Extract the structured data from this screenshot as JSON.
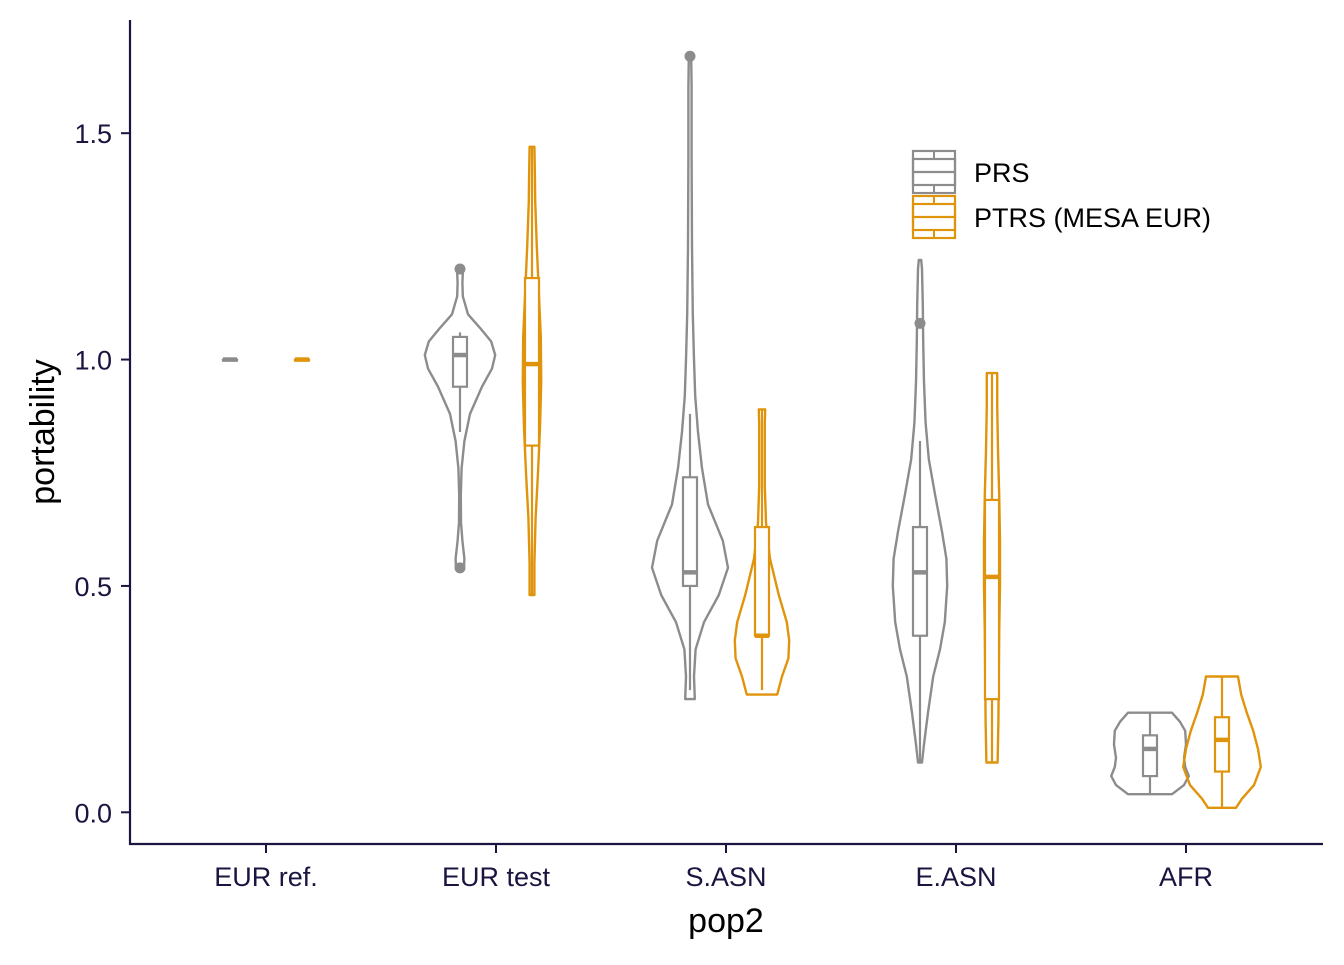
{
  "chart_data": {
    "type": "violin",
    "xlabel": "pop2",
    "ylabel": "portability",
    "ylim": [
      -0.07,
      1.75
    ],
    "yticks": [
      "0.0",
      "0.5",
      "1.0",
      "1.5"
    ],
    "ytick_values": [
      0.0,
      0.5,
      1.0,
      1.5
    ],
    "categories": [
      "EUR ref.",
      "EUR test",
      "S.ASN",
      "E.ASN",
      "AFR"
    ],
    "legend": {
      "position": "top-right",
      "entries": [
        "PRS",
        "PTRS (MESA EUR)"
      ]
    },
    "grid": false,
    "colors": {
      "PRS": "#8c8c8c",
      "PTRS (MESA EUR)": "#e0940b",
      "axis": "#1a1540"
    },
    "series": [
      {
        "name": "PRS",
        "stats": [
          {
            "category": "EUR ref.",
            "min": 1.0,
            "q1": 1.0,
            "median": 1.0,
            "q3": 1.0,
            "max": 1.0,
            "outliers": []
          },
          {
            "category": "EUR test",
            "min": 0.84,
            "q1": 0.94,
            "median": 1.01,
            "q3": 1.05,
            "max": 1.06,
            "outliers": [
              0.54,
              1.2
            ]
          },
          {
            "category": "S.ASN",
            "min": 0.27,
            "q1": 0.5,
            "median": 0.53,
            "q3": 0.74,
            "max": 0.88,
            "outliers": [
              1.67
            ]
          },
          {
            "category": "E.ASN",
            "min": 0.11,
            "q1": 0.39,
            "median": 0.53,
            "q3": 0.63,
            "max": 0.82,
            "outliers": [
              1.08
            ]
          },
          {
            "category": "AFR",
            "min": 0.04,
            "q1": 0.08,
            "median": 0.14,
            "q3": 0.17,
            "max": 0.22,
            "outliers": []
          }
        ],
        "violins": [
          {
            "category": "EUR ref.",
            "range": [
              0.999,
              1.001
            ],
            "density": [
              [
                0.999,
                0.1
              ],
              [
                1.0,
                0.12
              ],
              [
                1.001,
                0.1
              ]
            ]
          },
          {
            "category": "EUR test",
            "range": [
              0.54,
              1.2
            ],
            "density": [
              [
                0.54,
                0.1
              ],
              [
                0.56,
                0.11
              ],
              [
                0.6,
                0.06
              ],
              [
                0.64,
                0.025
              ],
              [
                0.7,
                0.02
              ],
              [
                0.76,
                0.04
              ],
              [
                0.82,
                0.11
              ],
              [
                0.88,
                0.25
              ],
              [
                0.94,
                0.55
              ],
              [
                0.98,
                0.8
              ],
              [
                1.01,
                0.88
              ],
              [
                1.04,
                0.78
              ],
              [
                1.07,
                0.5
              ],
              [
                1.1,
                0.2
              ],
              [
                1.14,
                0.07
              ],
              [
                1.17,
                0.06
              ],
              [
                1.19,
                0.07
              ],
              [
                1.2,
                0.04
              ]
            ]
          },
          {
            "category": "S.ASN",
            "range": [
              0.25,
              1.67
            ],
            "density": [
              [
                0.25,
                0.12
              ],
              [
                0.3,
                0.1
              ],
              [
                0.36,
                0.14
              ],
              [
                0.42,
                0.35
              ],
              [
                0.48,
                0.72
              ],
              [
                0.54,
                0.95
              ],
              [
                0.6,
                0.82
              ],
              [
                0.68,
                0.45
              ],
              [
                0.76,
                0.3
              ],
              [
                0.84,
                0.2
              ],
              [
                0.92,
                0.13
              ],
              [
                1.0,
                0.1
              ],
              [
                1.1,
                0.07
              ],
              [
                1.25,
                0.05
              ],
              [
                1.45,
                0.04
              ],
              [
                1.6,
                0.04
              ],
              [
                1.67,
                0.03
              ]
            ]
          },
          {
            "category": "E.ASN",
            "range": [
              0.11,
              1.22
            ],
            "density": [
              [
                0.11,
                0.05
              ],
              [
                0.15,
                0.1
              ],
              [
                0.22,
                0.2
              ],
              [
                0.3,
                0.33
              ],
              [
                0.36,
                0.5
              ],
              [
                0.42,
                0.62
              ],
              [
                0.5,
                0.68
              ],
              [
                0.56,
                0.66
              ],
              [
                0.62,
                0.55
              ],
              [
                0.7,
                0.38
              ],
              [
                0.78,
                0.22
              ],
              [
                0.86,
                0.14
              ],
              [
                0.95,
                0.1
              ],
              [
                1.04,
                0.08
              ],
              [
                1.12,
                0.07
              ],
              [
                1.2,
                0.05
              ],
              [
                1.22,
                0.03
              ]
            ]
          },
          {
            "category": "AFR",
            "range": [
              0.04,
              0.22
            ],
            "density": [
              [
                0.04,
                0.55
              ],
              [
                0.06,
                0.85
              ],
              [
                0.08,
                0.97
              ],
              [
                0.1,
                0.88
              ],
              [
                0.12,
                0.85
              ],
              [
                0.15,
                0.9
              ],
              [
                0.18,
                0.88
              ],
              [
                0.2,
                0.75
              ],
              [
                0.22,
                0.55
              ]
            ]
          }
        ]
      },
      {
        "name": "PTRS (MESA EUR)",
        "stats": [
          {
            "category": "EUR ref.",
            "min": 1.0,
            "q1": 1.0,
            "median": 1.0,
            "q3": 1.0,
            "max": 1.0,
            "outliers": []
          },
          {
            "category": "EUR test",
            "min": 0.48,
            "q1": 0.81,
            "median": 0.99,
            "q3": 1.18,
            "max": 1.47,
            "outliers": []
          },
          {
            "category": "S.ASN",
            "min": 0.27,
            "q1": 0.39,
            "median": 0.39,
            "q3": 0.63,
            "max": 0.89,
            "outliers": []
          },
          {
            "category": "E.ASN",
            "min": 0.11,
            "q1": 0.25,
            "median": 0.52,
            "q3": 0.69,
            "max": 0.97,
            "outliers": []
          },
          {
            "category": "AFR",
            "min": 0.01,
            "q1": 0.09,
            "median": 0.16,
            "q3": 0.21,
            "max": 0.3,
            "outliers": []
          }
        ],
        "violins": [
          {
            "category": "EUR ref.",
            "range": [
              0.999,
              1.001
            ],
            "density": [
              [
                0.999,
                0.1
              ],
              [
                1.0,
                0.12
              ],
              [
                1.001,
                0.1
              ]
            ]
          },
          {
            "category": "EUR test",
            "range": [
              0.48,
              1.47
            ],
            "density": [
              [
                0.48,
                0.06
              ],
              [
                0.55,
                0.06
              ],
              [
                0.65,
                0.09
              ],
              [
                0.75,
                0.15
              ],
              [
                0.85,
                0.2
              ],
              [
                0.95,
                0.23
              ],
              [
                1.05,
                0.22
              ],
              [
                1.15,
                0.17
              ],
              [
                1.25,
                0.12
              ],
              [
                1.35,
                0.08
              ],
              [
                1.42,
                0.07
              ],
              [
                1.47,
                0.06
              ]
            ]
          },
          {
            "category": "S.ASN",
            "range": [
              0.26,
              0.89
            ],
            "density": [
              [
                0.26,
                0.38
              ],
              [
                0.3,
                0.5
              ],
              [
                0.34,
                0.66
              ],
              [
                0.38,
                0.68
              ],
              [
                0.42,
                0.62
              ],
              [
                0.48,
                0.42
              ],
              [
                0.56,
                0.2
              ],
              [
                0.64,
                0.1
              ],
              [
                0.72,
                0.07
              ],
              [
                0.8,
                0.07
              ],
              [
                0.86,
                0.07
              ],
              [
                0.89,
                0.08
              ]
            ]
          },
          {
            "category": "E.ASN",
            "range": [
              0.11,
              0.97
            ],
            "density": [
              [
                0.11,
                0.14
              ],
              [
                0.2,
                0.16
              ],
              [
                0.3,
                0.17
              ],
              [
                0.4,
                0.18
              ],
              [
                0.5,
                0.2
              ],
              [
                0.6,
                0.2
              ],
              [
                0.7,
                0.18
              ],
              [
                0.8,
                0.15
              ],
              [
                0.9,
                0.13
              ],
              [
                0.97,
                0.13
              ]
            ]
          },
          {
            "category": "AFR",
            "range": [
              0.01,
              0.3
            ],
            "density": [
              [
                0.01,
                0.35
              ],
              [
                0.03,
                0.5
              ],
              [
                0.06,
                0.8
              ],
              [
                0.1,
                0.97
              ],
              [
                0.14,
                0.9
              ],
              [
                0.18,
                0.78
              ],
              [
                0.22,
                0.62
              ],
              [
                0.26,
                0.48
              ],
              [
                0.3,
                0.4
              ]
            ]
          }
        ]
      }
    ]
  }
}
